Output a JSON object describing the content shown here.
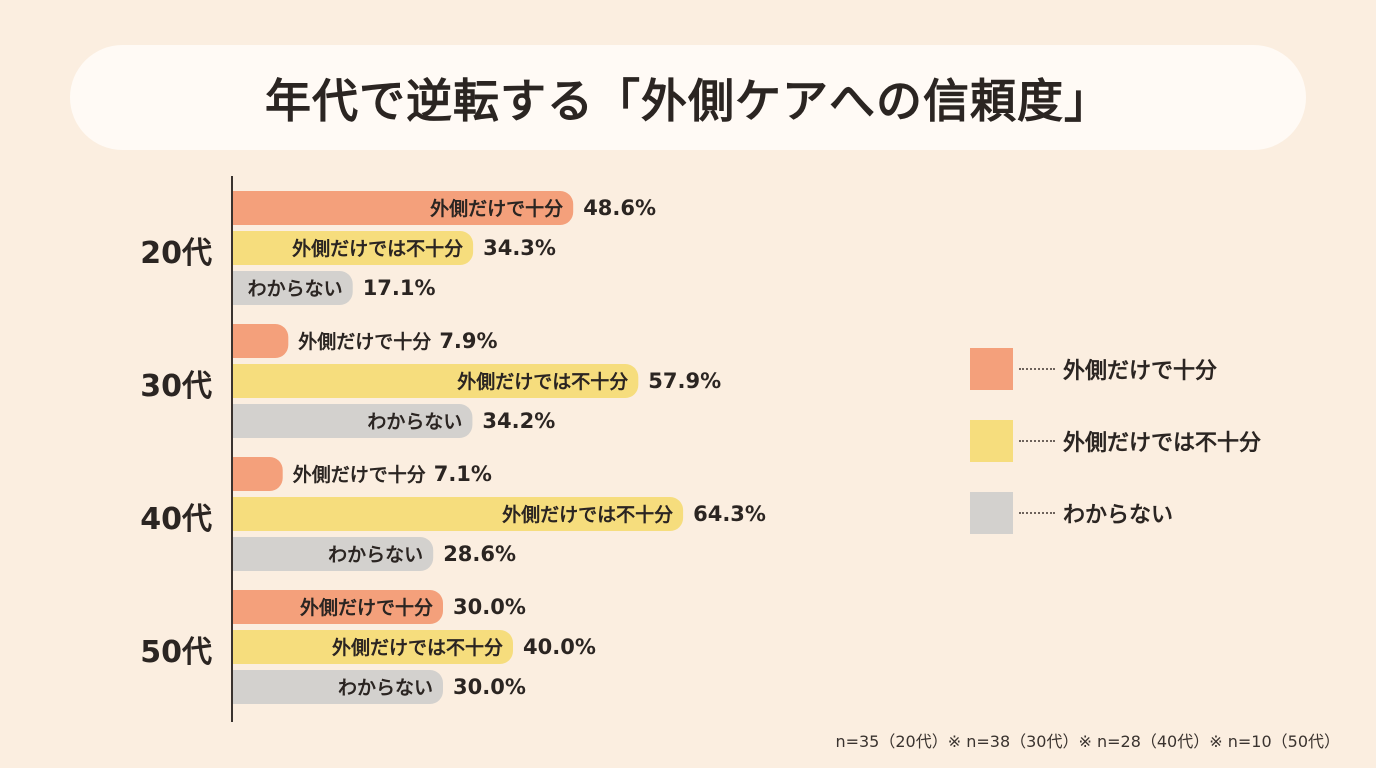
{
  "title": "年代で逆転する「外側ケアへの信頼度」",
  "colors": {
    "enough": "#f4a07b",
    "not_enough": "#f6dd7d",
    "unknown": "#d3d1ce",
    "axis": "#3a332f",
    "text": "#2b2522"
  },
  "legend": [
    {
      "label": "外側だけで十分",
      "color": "#f4a07b"
    },
    {
      "label": "外側だけでは不十分",
      "color": "#f6dd7d"
    },
    {
      "label": "わからない",
      "color": "#d3d1ce"
    }
  ],
  "footnote": "n=35（20代）※ n=38（30代）※ n=28（40代）※ n=10（50代）",
  "chart_data": {
    "type": "bar",
    "orientation": "horizontal",
    "title": "年代で逆転する「外側ケアへの信頼度」",
    "categories": [
      "20代",
      "30代",
      "40代",
      "50代"
    ],
    "unit": "%",
    "series": [
      {
        "name": "外側だけで十分",
        "values": [
          48.6,
          7.9,
          7.1,
          30.0
        ],
        "labels": [
          "48.6%",
          "7.9%",
          "7.1%",
          "30.0%"
        ]
      },
      {
        "name": "外側だけでは不十分",
        "values": [
          34.3,
          57.9,
          64.3,
          40.0
        ],
        "labels": [
          "34.3%",
          "57.9%",
          "64.3%",
          "40.0%"
        ]
      },
      {
        "name": "わからない",
        "values": [
          17.1,
          34.2,
          28.6,
          30.0
        ],
        "labels": [
          "17.1%",
          "34.2%",
          "28.6%",
          "30.0%"
        ]
      }
    ],
    "legend_position": "right",
    "grid": false
  }
}
